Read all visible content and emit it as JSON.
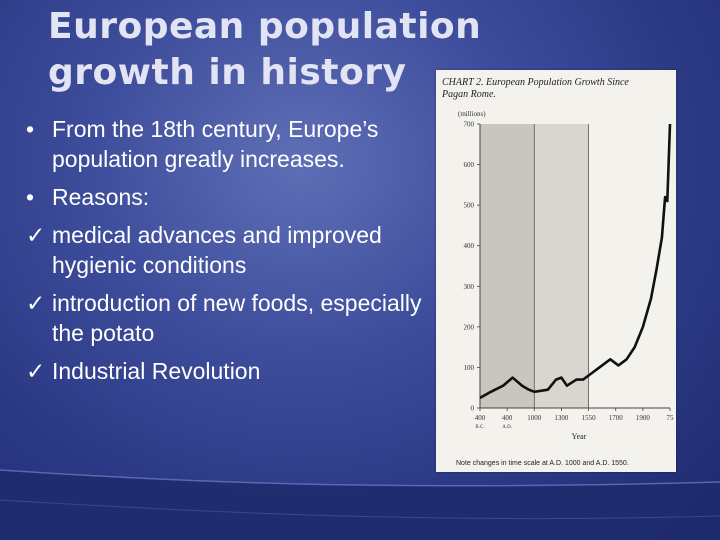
{
  "slide": {
    "title_line1": "European population",
    "title_line2": "growth in history",
    "bullets": [
      {
        "marker": "•",
        "text": "From the 18th century, Europe’s population greatly increases."
      },
      {
        "marker": "•",
        "text": "Reasons:"
      },
      {
        "marker": "✓",
        "text": "medical advances and improved hygienic conditions"
      },
      {
        "marker": "✓",
        "text": "introduction of new foods, especially the potato"
      },
      {
        "marker": "✓",
        "text": "Industrial Revolution"
      }
    ]
  },
  "chart_data": {
    "type": "line",
    "title_line1": "CHART 2. European Population Growth Since",
    "title_line2": "Pagan Rome.",
    "ylabel": "(millions)",
    "xlabel": "Year",
    "footnote": "Note changes in time scale at A.D. 1000 and A.D. 1550.",
    "ylim": [
      0,
      700
    ],
    "y_ticks": [
      0,
      100,
      200,
      300,
      400,
      500,
      600,
      700
    ],
    "x_ticks": [
      {
        "label": "400",
        "sub": "B.C."
      },
      {
        "label": "400",
        "sub": "A.D."
      },
      {
        "label": "1000",
        "sub": ""
      },
      {
        "label": "1300",
        "sub": ""
      },
      {
        "label": "1550",
        "sub": ""
      },
      {
        "label": "1700",
        "sub": ""
      },
      {
        "label": "1900",
        "sub": ""
      },
      {
        "label": "75",
        "sub": ""
      }
    ],
    "shaded_regions": [
      {
        "from_tick": 0,
        "to_tick": 2,
        "color": "#c9c6c0"
      },
      {
        "from_tick": 2,
        "to_tick": 4,
        "color": "#d9d6d0"
      }
    ],
    "series": [
      {
        "points": [
          {
            "t": 0.0,
            "y": 25
          },
          {
            "t": 0.4,
            "y": 40
          },
          {
            "t": 0.85,
            "y": 55
          },
          {
            "t": 1.2,
            "y": 75
          },
          {
            "t": 1.55,
            "y": 55
          },
          {
            "t": 1.8,
            "y": 45
          },
          {
            "t": 2.0,
            "y": 40
          },
          {
            "t": 2.5,
            "y": 45
          },
          {
            "t": 2.8,
            "y": 70
          },
          {
            "t": 3.0,
            "y": 75
          },
          {
            "t": 3.2,
            "y": 55
          },
          {
            "t": 3.55,
            "y": 70
          },
          {
            "t": 3.8,
            "y": 70
          },
          {
            "t": 4.0,
            "y": 80
          },
          {
            "t": 4.4,
            "y": 100
          },
          {
            "t": 4.8,
            "y": 120
          },
          {
            "t": 5.1,
            "y": 105
          },
          {
            "t": 5.4,
            "y": 120
          },
          {
            "t": 5.7,
            "y": 150
          },
          {
            "t": 6.0,
            "y": 200
          },
          {
            "t": 6.3,
            "y": 270
          },
          {
            "t": 6.5,
            "y": 340
          },
          {
            "t": 6.7,
            "y": 420
          },
          {
            "t": 6.82,
            "y": 520
          },
          {
            "t": 6.9,
            "y": 510
          },
          {
            "t": 7.0,
            "y": 700
          }
        ]
      }
    ]
  }
}
